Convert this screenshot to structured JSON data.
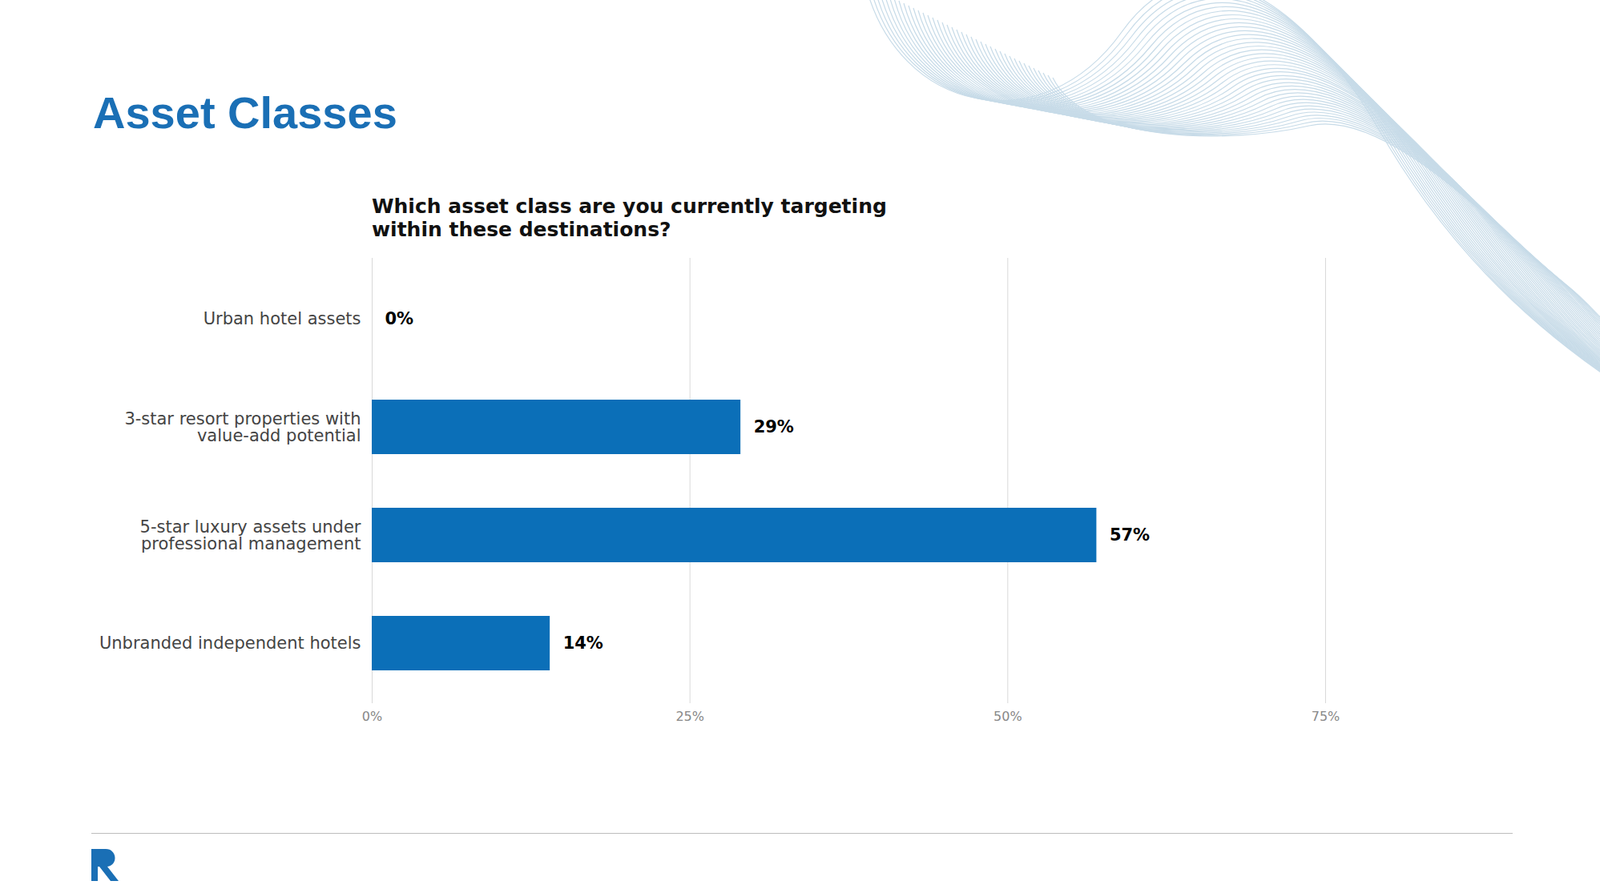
{
  "chart_data": {
    "type": "bar",
    "title": "Asset Classes",
    "subtitle": "Which asset class are you currently targeting within these destinations?",
    "categories": [
      "Urban hotel assets",
      "3-star resort properties with value-add potential",
      "5-star luxury assets under professional management",
      "Unbranded independent hotels"
    ],
    "values": [
      0,
      29,
      57,
      14
    ],
    "value_labels": [
      "0%",
      "29%",
      "57%",
      "14%"
    ],
    "color": "#0b6fb8",
    "orientation": "horizontal",
    "data_labels": true,
    "grid": true,
    "xlim": [
      0,
      75
    ],
    "xticks": [
      {
        "value": 0,
        "label": "0%"
      },
      {
        "value": 25,
        "label": "25%"
      },
      {
        "value": 50,
        "label": "50%"
      },
      {
        "value": 75,
        "label": "75%"
      }
    ]
  }
}
